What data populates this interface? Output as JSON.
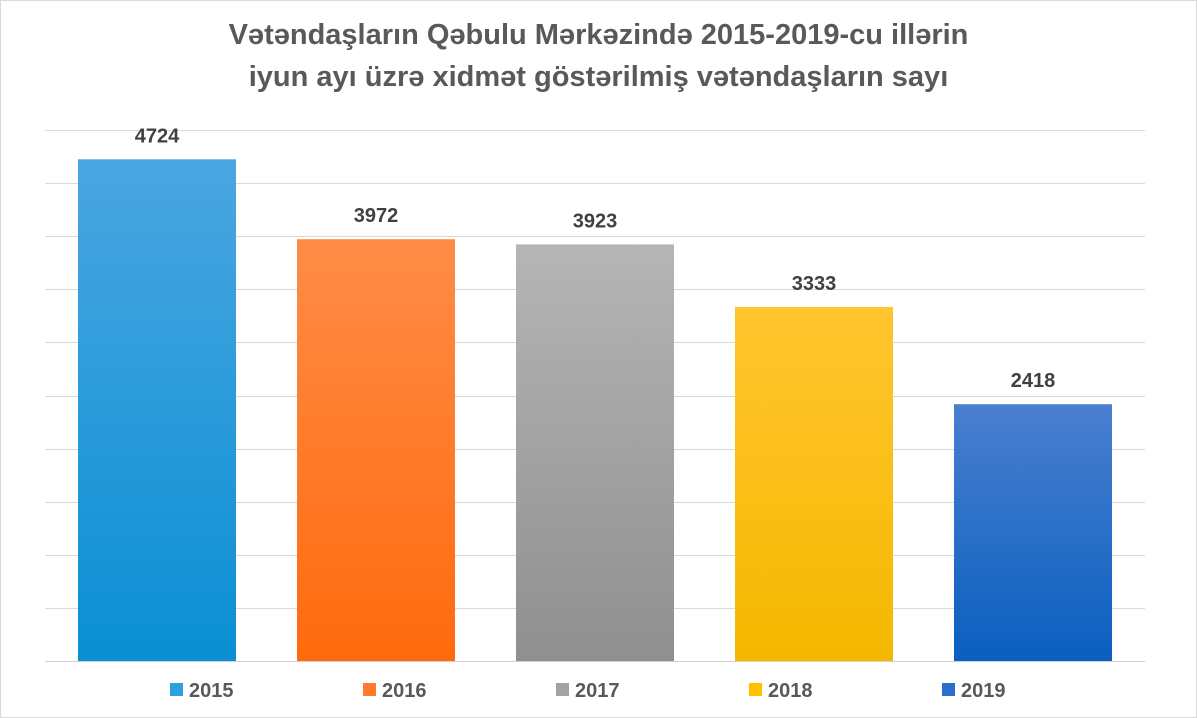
{
  "title_line1": "Vətəndaşların Qəbulu Mərkəzində 2015-2019-cu illərin",
  "title_line2": "iyun ayı üzrə xidmət göstərilmiş vətəndaşların sayı",
  "chart_data": {
    "type": "bar",
    "title": "Vətəndaşların Qəbulu Mərkəzində 2015-2019-cu illərin iyun ayı üzrə xidmət göstərilmiş vətəndaşların sayı",
    "categories": [
      "2015",
      "2016",
      "2017",
      "2018",
      "2019"
    ],
    "values": [
      4724,
      3972,
      3923,
      3333,
      2418
    ],
    "colors": [
      {
        "top": "#4aa6e0",
        "bottom": "#0a8fd4"
      },
      {
        "top": "#ff8c47",
        "bottom": "#ff6a0d"
      },
      {
        "top": "#b5b5b5",
        "bottom": "#8f8f8f"
      },
      {
        "top": "#ffc52e",
        "bottom": "#f5b800"
      },
      {
        "top": "#4a7fd0",
        "bottom": "#0a5fc0"
      }
    ],
    "legend_colors": [
      "#2f9fe0",
      "#ff7a2a",
      "#a3a3a3",
      "#ffc000",
      "#2a6fcf"
    ],
    "ylim": [
      0,
      5000
    ],
    "grid": true,
    "legend": "bottom",
    "xlabel": "",
    "ylabel": ""
  }
}
